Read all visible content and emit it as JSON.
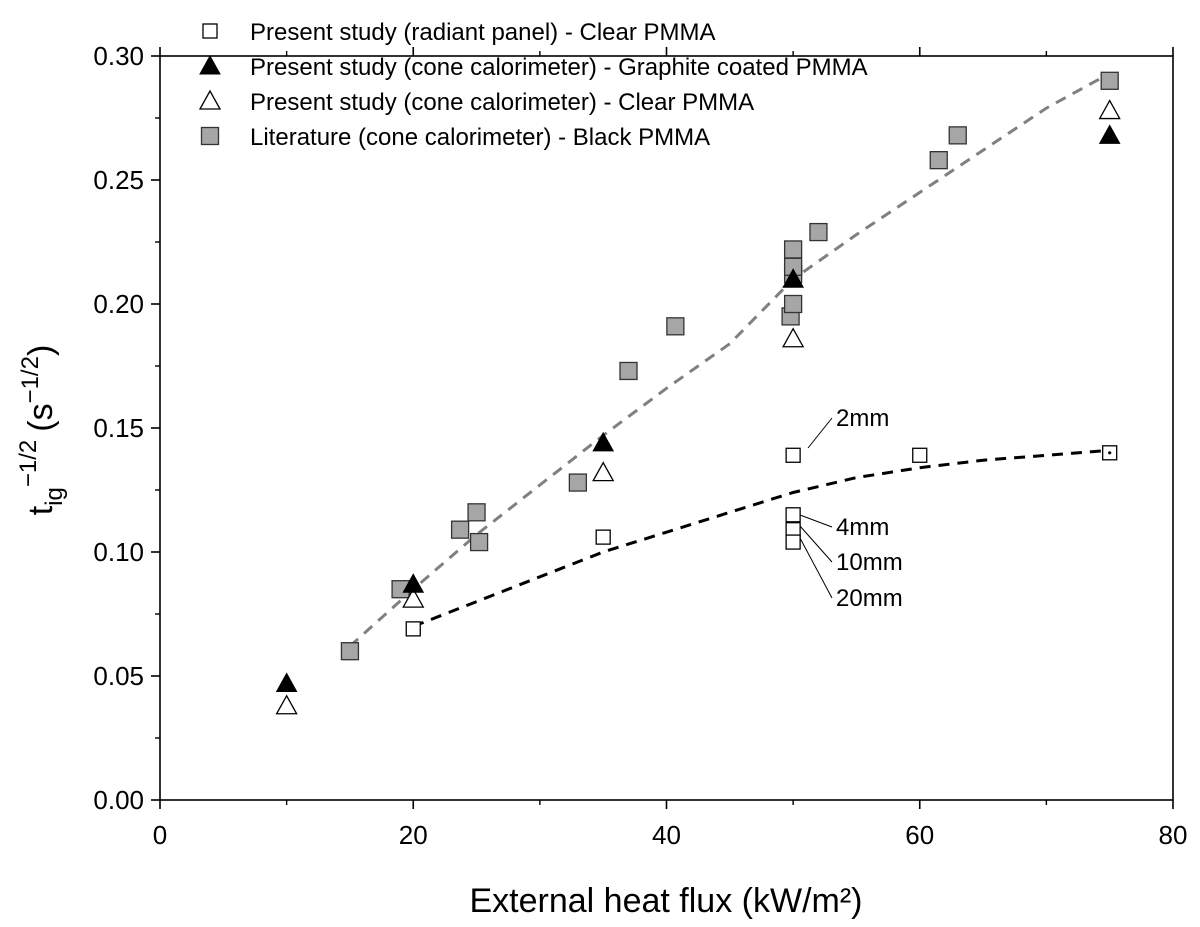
{
  "chart_data": {
    "type": "scatter",
    "title": "",
    "xlabel": "External heat flux (kW/m²)",
    "ylabel": {
      "base": "t",
      "subscript": "ig",
      "superscript": "−1/2",
      "units_open": "(s",
      "units_sup": "−1/2",
      "units_close": ")"
    },
    "xlim": [
      0,
      80
    ],
    "ylim": [
      0,
      0.3
    ],
    "x_ticks": [
      0,
      20,
      40,
      60,
      80
    ],
    "y_ticks": [
      0.0,
      0.05,
      0.1,
      0.15,
      0.2,
      0.25,
      0.3
    ],
    "x_tick_labels": [
      "0",
      "20",
      "40",
      "60",
      "80"
    ],
    "y_tick_labels": [
      "0.00",
      "0.05",
      "0.10",
      "0.15",
      "0.20",
      "0.25",
      "0.30"
    ],
    "legend_position": "top-left",
    "series": [
      {
        "name": "Present study (radiant panel) - Clear PMMA",
        "marker": "open-square-small",
        "x": [
          20,
          35,
          50,
          50,
          50,
          50,
          60,
          75
        ],
        "y": [
          0.069,
          0.106,
          0.139,
          0.115,
          0.109,
          0.104,
          0.139,
          0.14
        ]
      },
      {
        "name": "Present study (cone calorimeter) - Graphite coated PMMA",
        "marker": "filled-triangle",
        "x": [
          10,
          20,
          35,
          50,
          75
        ],
        "y": [
          0.047,
          0.087,
          0.144,
          0.21,
          0.268
        ]
      },
      {
        "name": "Present study (cone calorimeter) - Clear PMMA",
        "marker": "open-triangle",
        "x": [
          10,
          20,
          35,
          50,
          75
        ],
        "y": [
          0.038,
          0.081,
          0.132,
          0.186,
          0.278
        ]
      },
      {
        "name": "Literature (cone calorimeter) - Black PMMA",
        "marker": "grey-square",
        "x": [
          15,
          19,
          23.7,
          25,
          25.2,
          33,
          37,
          40.7,
          49.8,
          50,
          50,
          50,
          50,
          52,
          61.5,
          63,
          75
        ],
        "y": [
          0.06,
          0.085,
          0.109,
          0.116,
          0.104,
          0.128,
          0.173,
          0.191,
          0.195,
          0.2,
          0.212,
          0.215,
          0.222,
          0.229,
          0.258,
          0.268,
          0.29
        ]
      }
    ],
    "fit_lines": [
      {
        "style": "grey-dashed",
        "color": "#808080",
        "x": [
          15,
          20,
          25,
          30,
          35,
          40,
          45,
          50,
          55,
          60,
          65,
          70,
          75
        ],
        "y": [
          0.062,
          0.085,
          0.107,
          0.127,
          0.147,
          0.166,
          0.184,
          0.21,
          0.228,
          0.245,
          0.262,
          0.279,
          0.293
        ]
      },
      {
        "style": "black-dashed",
        "color": "#000000",
        "x": [
          20,
          25,
          30,
          35,
          40,
          45,
          50,
          55,
          60,
          65,
          70,
          75
        ],
        "y": [
          0.07,
          0.08,
          0.09,
          0.1,
          0.108,
          0.116,
          0.124,
          0.13,
          0.134,
          0.137,
          0.139,
          0.141
        ]
      }
    ],
    "annotations": [
      {
        "text": "2mm",
        "x": 50,
        "y": 0.139
      },
      {
        "text": "4mm",
        "x": 50,
        "y": 0.115
      },
      {
        "text": "10mm",
        "x": 50,
        "y": 0.109
      },
      {
        "text": "20mm",
        "x": 50,
        "y": 0.104
      }
    ]
  }
}
